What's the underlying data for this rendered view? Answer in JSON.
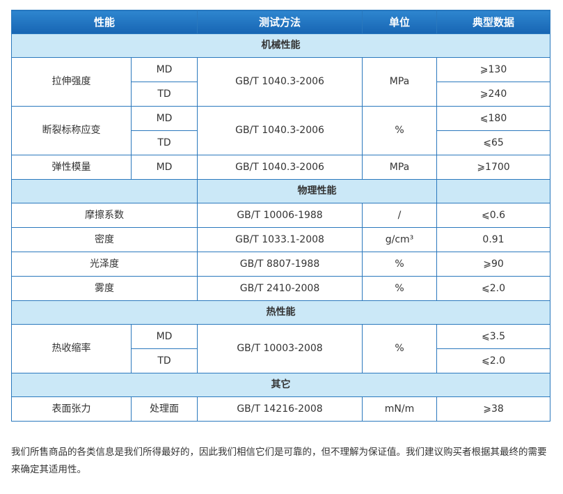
{
  "header": [
    "性能",
    "测试方法",
    "单位",
    "典型数据"
  ],
  "sections": {
    "mechanical": "机械性能",
    "physical": "物理性能",
    "thermal": "热性能",
    "other": "其它"
  },
  "rows": {
    "tensile": {
      "name": "拉伸强度",
      "dir1": "MD",
      "dir2": "TD",
      "method": "GB/T 1040.3-2006",
      "unit": "MPa",
      "v1": "⩾130",
      "v2": "⩾240"
    },
    "elongation": {
      "name": "断裂标称应变",
      "dir1": "MD",
      "dir2": "TD",
      "method": "GB/T 1040.3-2006",
      "unit": "%",
      "v1": "⩽180",
      "v2": "⩽65"
    },
    "modulus": {
      "name": "弹性模量",
      "dir": "MD",
      "method": "GB/T 1040.3-2006",
      "unit": "MPa",
      "value": "⩾1700"
    },
    "friction": {
      "name": "摩擦系数",
      "method": "GB/T 10006-1988",
      "unit": "/",
      "value": "⩽0.6"
    },
    "density": {
      "name": "密度",
      "method": "GB/T 1033.1-2008",
      "unit": "g/cm³",
      "value": "0.91"
    },
    "gloss": {
      "name": "光泽度",
      "method": "GB/T 8807-1988",
      "unit": "%",
      "value": "⩾90"
    },
    "haze": {
      "name": "雾度",
      "method": "GB/T 2410-2008",
      "unit": "%",
      "value": "⩽2.0"
    },
    "shrinkage": {
      "name": "热收缩率",
      "dir1": "MD",
      "dir2": "TD",
      "method": "GB/T 10003-2008",
      "unit": "%",
      "v1": "⩽3.5",
      "v2": "⩽2.0"
    },
    "tension": {
      "name": "表面张力",
      "dir": "处理面",
      "method": "GB/T 14216-2008",
      "unit": "mN/m",
      "value": "⩾38"
    }
  },
  "note": "我们所售商品的各类信息是我们所得最好的，因此我们相信它们是可靠的，但不理解为保证值。我们建议购买者根据其最终的需要来确定其适用性。",
  "colors": {
    "header_bg": "#1f72c0",
    "section_bg": "#cbe8f7",
    "border": "#2a78bd"
  }
}
